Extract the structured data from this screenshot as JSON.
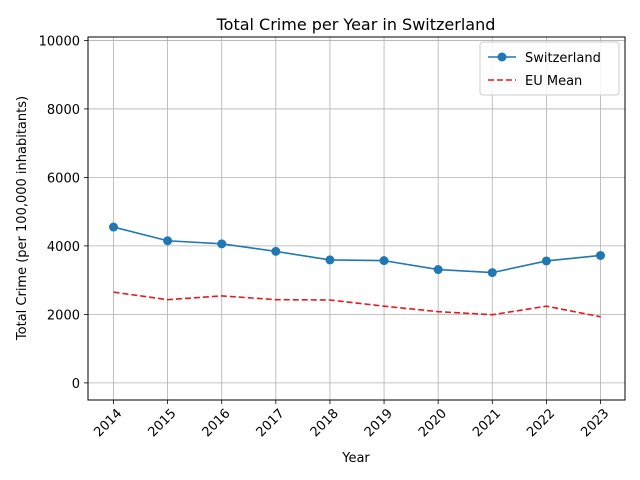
{
  "chart_data": {
    "type": "line",
    "title": "Total Crime per Year in Switzerland",
    "xlabel": "Year",
    "ylabel": "Total Crime (per 100,000 inhabitants)",
    "x": [
      "2014",
      "2015",
      "2016",
      "2017",
      "2018",
      "2019",
      "2020",
      "2021",
      "2022",
      "2023"
    ],
    "ylim": [
      -500,
      10100
    ],
    "yticks": [
      "0",
      "2000",
      "4000",
      "6000",
      "8000",
      "10000"
    ],
    "grid": true,
    "legend_position": "top-right",
    "series": [
      {
        "name": "Switzerland",
        "color": "#1f77b4",
        "style": "solid",
        "marker": "circle",
        "values": [
          4550,
          4150,
          4060,
          3840,
          3590,
          3570,
          3310,
          3220,
          3560,
          3720
        ]
      },
      {
        "name": "EU Mean",
        "color": "#e41a1c",
        "style": "dashed",
        "marker": "none",
        "values": [
          2650,
          2430,
          2540,
          2430,
          2420,
          2240,
          2080,
          1990,
          2240,
          1930
        ]
      }
    ]
  }
}
